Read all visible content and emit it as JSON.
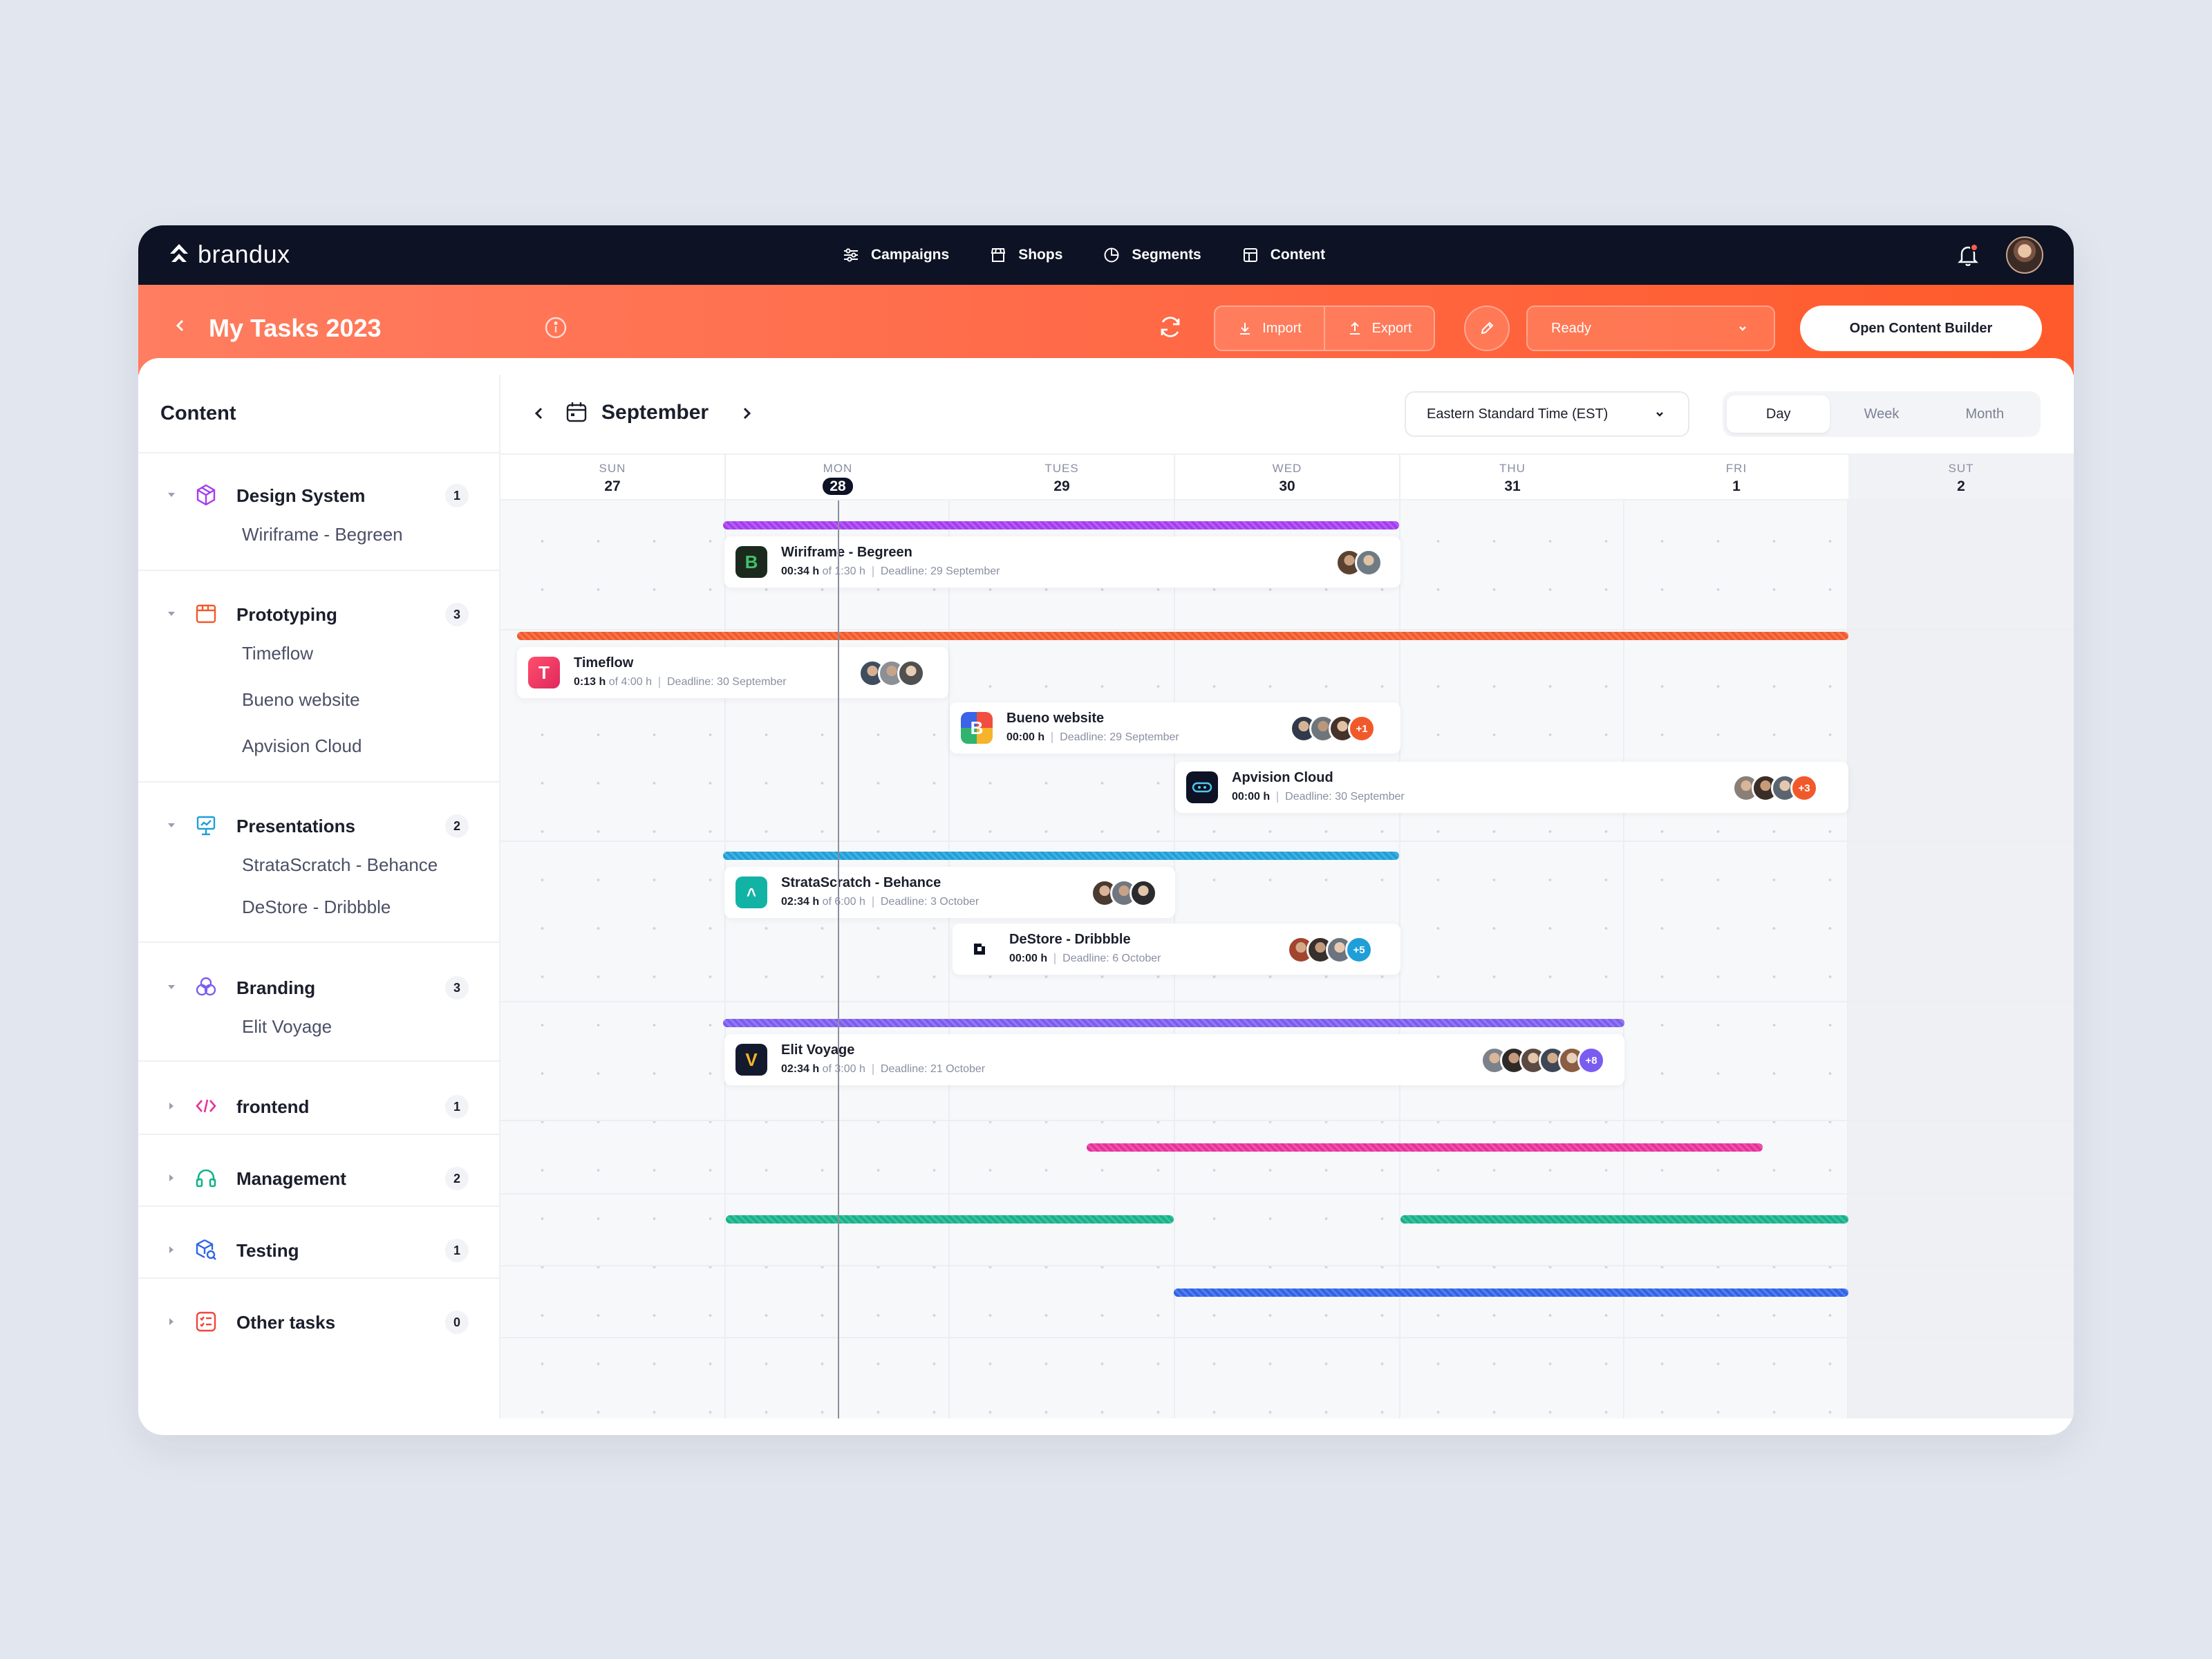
{
  "brand": {
    "name": "brandux"
  },
  "nav": {
    "items": [
      {
        "label": "Campaigns",
        "icon": "sliders-icon"
      },
      {
        "label": "Shops",
        "icon": "store-icon"
      },
      {
        "label": "Segments",
        "icon": "pie-chart-icon"
      },
      {
        "label": "Content",
        "icon": "layout-icon"
      }
    ]
  },
  "header": {
    "title": "My Tasks 2023",
    "import_label": "Import",
    "export_label": "Export",
    "status_value": "Ready",
    "builder_label": "Open Content Builder"
  },
  "sidebar": {
    "title": "Content",
    "groups": [
      {
        "label": "Design System",
        "count": "1",
        "items": [
          "Wiriframe - Begreen"
        ]
      },
      {
        "label": "Prototyping",
        "count": "3",
        "items": [
          "Timeflow",
          "Bueno website",
          "Apvision Cloud"
        ]
      },
      {
        "label": "Presentations",
        "count": "2",
        "items": [
          "StrataScratch - Behance",
          "DeStore - Dribbble"
        ]
      },
      {
        "label": "Branding",
        "count": "3",
        "items": [
          "Elit Voyage"
        ]
      },
      {
        "label": "frontend",
        "count": "1",
        "items": []
      },
      {
        "label": "Management",
        "count": "2",
        "items": []
      },
      {
        "label": "Testing",
        "count": "1",
        "items": []
      },
      {
        "label": "Other tasks",
        "count": "0",
        "items": []
      }
    ]
  },
  "calendar": {
    "month": "September",
    "timezone": "Eastern Standard Time (EST)",
    "views": [
      "Day",
      "Week",
      "Month"
    ],
    "active_view": "Day",
    "days": [
      {
        "name": "SUN",
        "num": "27"
      },
      {
        "name": "MON",
        "num": "28"
      },
      {
        "name": "TUES",
        "num": "29"
      },
      {
        "name": "WED",
        "num": "30"
      },
      {
        "name": "THU",
        "num": "31"
      },
      {
        "name": "FRI",
        "num": "1"
      },
      {
        "name": "SUT",
        "num": "2"
      }
    ]
  },
  "colors": {
    "design": "#a43cf0",
    "prototyping": "#f2592a",
    "presentations": "#1f9fd8",
    "branding": "#7b5cf0",
    "frontend": "#e8309a",
    "management": "#15b28a",
    "testing": "#2f63e8"
  },
  "tasks": [
    {
      "title": "Wiriframe - Begreen",
      "spent": "00:34 h",
      "of": "of 1:30 h",
      "deadline_label": "Deadline:",
      "deadline": "29 September"
    },
    {
      "title": "Timeflow",
      "spent": "0:13 h",
      "of": "of 4:00 h",
      "deadline_label": "Deadline:",
      "deadline": "30 September"
    },
    {
      "title": "Bueno website",
      "spent": "00:00 h",
      "of": "",
      "deadline_label": "Deadline:",
      "deadline": "29 September",
      "more": "+1"
    },
    {
      "title": "Apvision Cloud",
      "spent": "00:00 h",
      "of": "",
      "deadline_label": "Deadline:",
      "deadline": "30 September",
      "more": "+3"
    },
    {
      "title": "StrataScratch - Behance",
      "spent": "02:34 h",
      "of": "of 6:00 h",
      "deadline_label": "Deadline:",
      "deadline": "3 October"
    },
    {
      "title": "DeStore - Dribbble",
      "spent": "00:00 h",
      "of": "",
      "deadline_label": "Deadline:",
      "deadline": "6 October",
      "more": "+5"
    },
    {
      "title": "Elit Voyage",
      "spent": "02:34 h",
      "of": "of 3:00 h",
      "deadline_label": "Deadline:",
      "deadline": "21 October",
      "more": "+8"
    }
  ]
}
